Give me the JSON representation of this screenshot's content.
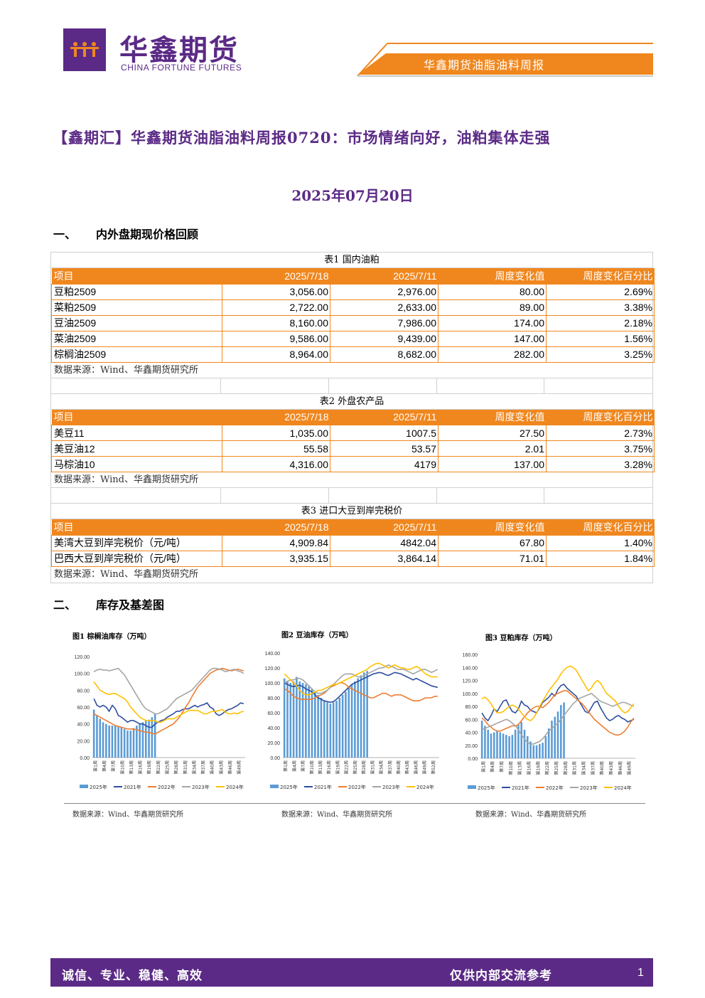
{
  "header": {
    "logo_cn": "华鑫期货",
    "logo_en": "CHINA FORTUNE FUTURES",
    "bar_text": "华鑫期货油脂油料周报"
  },
  "title": "【鑫期汇】华鑫期货油脂油料周报0720：市场情绪向好，油粕集体走强",
  "date": "2025年07月20日",
  "sections": {
    "s1": {
      "num": "一、",
      "label": "内外盘期现价格回顾"
    },
    "s2": {
      "num": "二、",
      "label": "库存及基差图"
    }
  },
  "columns": [
    "项目",
    "2025/7/18",
    "2025/7/11",
    "周度变化值",
    "周度变化百分比"
  ],
  "table1": {
    "caption": "表1 国内油粕",
    "rows": [
      [
        "豆粕2509",
        "3,056.00",
        "2,976.00",
        "80.00",
        "2.69%"
      ],
      [
        "菜粕2509",
        "2,722.00",
        "2,633.00",
        "89.00",
        "3.38%"
      ],
      [
        "豆油2509",
        "8,160.00",
        "7,986.00",
        "174.00",
        "2.18%"
      ],
      [
        "菜油2509",
        "9,586.00",
        "9,439.00",
        "147.00",
        "1.56%"
      ],
      [
        "棕榈油2509",
        "8,964.00",
        "8,682.00",
        "282.00",
        "3.25%"
      ]
    ],
    "source": "数据来源：Wind、华鑫期货研究所"
  },
  "table2": {
    "caption": "表2 外盘农产品",
    "rows": [
      [
        "美豆11",
        "1,035.00",
        "1007.5",
        "27.50",
        "2.73%"
      ],
      [
        "美豆油12",
        "55.58",
        "53.57",
        "2.01",
        "3.75%"
      ],
      [
        "马棕油10",
        "4,316.00",
        "4179",
        "137.00",
        "3.28%"
      ]
    ],
    "source": "数据来源：Wind、华鑫期货研究所"
  },
  "table3": {
    "caption": "表3 进口大豆到岸完税价",
    "rows": [
      [
        "美湾大豆到岸完税价（元/吨）",
        "4,909.84",
        "4842.04",
        "67.80",
        "1.40%"
      ],
      [
        "巴西大豆到岸完税价（元/吨）",
        "3,935.15",
        "3,864.14",
        "71.01",
        "1.84%"
      ]
    ],
    "source": "数据来源：Wind、华鑫期货研究所"
  },
  "chart_data": [
    {
      "type": "line",
      "title": "图1 棕榈油库存（万吨）",
      "ylim": [
        0,
        120
      ],
      "yticks": [
        "120.00",
        "100.00",
        "80.00",
        "60.00",
        "40.00",
        "20.00",
        "0.00"
      ],
      "xticks": [
        "第1周",
        "第4周",
        "第7周",
        "第10周",
        "第13周",
        "第16周",
        "第19周",
        "第22周",
        "第25周",
        "第28周",
        "第31周",
        "第34周",
        "第37周",
        "第40周",
        "第43周",
        "第46周",
        "第49周"
      ],
      "bar_series": {
        "name": "2025年",
        "color": "#5b9bd5",
        "values": [
          57,
          50,
          46,
          42,
          40,
          38,
          38,
          38,
          37,
          36,
          34,
          32,
          32,
          35,
          38,
          40,
          42,
          44,
          45,
          48,
          52
        ]
      },
      "series": [
        {
          "name": "2021年",
          "color": "#2e4f9e",
          "values": [
            70,
            62,
            60,
            62,
            60,
            55,
            62,
            58,
            50,
            48,
            45,
            42,
            44,
            44,
            42,
            40,
            40,
            38,
            36,
            36,
            40,
            42,
            44,
            45,
            48,
            50,
            52,
            55,
            55,
            57,
            58,
            58,
            60,
            62,
            60,
            62,
            63,
            65,
            60,
            58,
            52,
            50,
            52,
            55,
            57,
            58,
            60,
            62,
            65,
            64
          ]
        },
        {
          "name": "2022年",
          "color": "#ed7d31",
          "values": [
            52,
            50,
            48,
            46,
            44,
            42,
            40,
            38,
            37,
            36,
            35,
            34,
            34,
            34,
            33,
            32,
            31,
            30,
            30,
            29,
            28,
            30,
            32,
            34,
            36,
            38,
            40,
            44,
            48,
            54,
            60,
            65,
            72,
            78,
            84,
            88,
            92,
            96,
            100,
            102,
            104,
            105,
            106,
            105,
            104,
            103,
            104,
            105,
            104,
            103
          ]
        },
        {
          "name": "2023年",
          "color": "#a5a5a5",
          "values": [
            102,
            104,
            105,
            104,
            104,
            103,
            104,
            105,
            106,
            102,
            98,
            92,
            86,
            80,
            74,
            68,
            62,
            58,
            56,
            54,
            52,
            52,
            54,
            56,
            58,
            62,
            66,
            70,
            72,
            74,
            76,
            78,
            80,
            84,
            88,
            92,
            96,
            100,
            104,
            106,
            106,
            105,
            104,
            102,
            103,
            104,
            105,
            103,
            102,
            100
          ]
        },
        {
          "name": "2024年",
          "color": "#ffc000",
          "values": [
            90,
            85,
            80,
            78,
            76,
            75,
            76,
            76,
            74,
            72,
            70,
            66,
            60,
            56,
            52,
            48,
            46,
            44,
            44,
            44,
            44,
            42,
            42,
            44,
            46,
            46,
            46,
            48,
            50,
            52,
            54,
            56,
            56,
            56,
            56,
            54,
            52,
            52,
            54,
            55,
            55,
            56,
            57,
            54,
            52,
            52,
            53,
            52,
            54,
            55
          ]
        }
      ]
    },
    {
      "type": "line",
      "title": "图2 豆油库存（万吨）",
      "ylim": [
        0,
        140
      ],
      "yticks": [
        "140.00",
        "120.00",
        "100.00",
        "80.00",
        "60.00",
        "40.00",
        "20.00",
        "0.00"
      ],
      "xticks": [
        "第1周",
        "第4周",
        "第7周",
        "第10周",
        "第13周",
        "第16周",
        "第19周",
        "第22周",
        "第25周",
        "第28周",
        "第31周",
        "第34周",
        "第37周",
        "第40周",
        "第43周",
        "第46周",
        "第49周",
        "第52周"
      ],
      "bar_series": {
        "name": "2025年",
        "color": "#5b9bd5",
        "values": [
          106,
          103,
          100,
          102,
          108,
          102,
          100,
          98,
          96,
          92,
          88,
          84,
          80,
          76,
          74,
          72,
          74,
          76,
          80,
          84,
          88,
          94,
          98,
          102,
          106,
          110,
          114,
          116
        ]
      },
      "series": [
        {
          "name": "2021年",
          "color": "#2e4f9e",
          "values": [
            100,
            98,
            96,
            95,
            96,
            97,
            95,
            92,
            90,
            88,
            84,
            80,
            78,
            76,
            75,
            74,
            75,
            78,
            82,
            86,
            90,
            94,
            98,
            100,
            102,
            104,
            106,
            108,
            110,
            112,
            113,
            114,
            113,
            111,
            110,
            112,
            114,
            113,
            112,
            110,
            108,
            106,
            104,
            106,
            104,
            102,
            100,
            98,
            96,
            95,
            94
          ]
        },
        {
          "name": "2022年",
          "color": "#ed7d31",
          "values": [
            92,
            90,
            86,
            82,
            80,
            78,
            78,
            78,
            78,
            78,
            80,
            82,
            84,
            86,
            90,
            94,
            96,
            98,
            100,
            100,
            98,
            94,
            92,
            90,
            88,
            86,
            84,
            82,
            80,
            80,
            82,
            84,
            86,
            86,
            84,
            82,
            84,
            84,
            84,
            82,
            80,
            78,
            76,
            76,
            76,
            78,
            80,
            80,
            80,
            82,
            82
          ]
        },
        {
          "name": "2023年",
          "color": "#a5a5a5",
          "values": [
            100,
            102,
            104,
            104,
            106,
            106,
            104,
            100,
            96,
            92,
            88,
            86,
            86,
            88,
            90,
            94,
            98,
            102,
            106,
            110,
            112,
            112,
            112,
            110,
            108,
            108,
            110,
            112,
            114,
            116,
            118,
            120,
            120,
            122,
            124,
            122,
            120,
            118,
            118,
            118,
            116,
            114,
            112,
            114,
            116,
            118,
            118,
            116,
            114,
            116,
            118
          ]
        },
        {
          "name": "2024年",
          "color": "#ffc000",
          "values": [
            112,
            108,
            104,
            100,
            96,
            90,
            86,
            84,
            84,
            86,
            88,
            90,
            90,
            92,
            94,
            96,
            98,
            98,
            100,
            102,
            104,
            106,
            108,
            110,
            112,
            114,
            116,
            118,
            122,
            124,
            126,
            126,
            124,
            122,
            120,
            122,
            124,
            122,
            120,
            120,
            118,
            118,
            120,
            122,
            120,
            116,
            112,
            110,
            108,
            108,
            108
          ]
        }
      ]
    },
    {
      "type": "line",
      "title": "图3 豆粕库存（万吨）",
      "ylim": [
        0,
        160
      ],
      "yticks": [
        "160.00",
        "140.00",
        "120.00",
        "100.00",
        "80.00",
        "60.00",
        "40.00",
        "20.00",
        "0.00"
      ],
      "xticks": [
        "第1周",
        "第4周",
        "第7周",
        "第10周",
        "第13周",
        "第16周",
        "第19周",
        "第22周",
        "第25周",
        "第28周",
        "第31周",
        "第34周",
        "第37周",
        "第40周",
        "第43周",
        "第46周",
        "第49周"
      ],
      "bar_series": {
        "name": "2025年",
        "color": "#5b9bd5",
        "values": [
          58,
          50,
          44,
          38,
          40,
          42,
          40,
          38,
          36,
          34,
          36,
          44,
          52,
          56,
          44,
          34,
          26,
          20,
          20,
          22,
          24,
          34,
          46,
          58,
          64,
          72,
          82,
          86
        ]
      },
      "series": [
        {
          "name": "2021年",
          "color": "#2e4f9e",
          "values": [
            70,
            62,
            58,
            66,
            76,
            72,
            80,
            88,
            90,
            80,
            72,
            70,
            76,
            88,
            82,
            80,
            74,
            72,
            70,
            78,
            86,
            90,
            94,
            100,
            96,
            106,
            112,
            114,
            108,
            104,
            100,
            96,
            88,
            80,
            72,
            70,
            78,
            86,
            88,
            78,
            70,
            62,
            58,
            60,
            64,
            66,
            62,
            60,
            56,
            58,
            60
          ]
        },
        {
          "name": "2022年",
          "color": "#ed7d31",
          "values": [
            62,
            58,
            52,
            48,
            44,
            42,
            42,
            44,
            46,
            48,
            50,
            50,
            52,
            58,
            64,
            70,
            74,
            78,
            80,
            80,
            78,
            82,
            86,
            92,
            98,
            100,
            102,
            104,
            104,
            100,
            96,
            92,
            88,
            84,
            78,
            72,
            66,
            60,
            56,
            52,
            48,
            44,
            40,
            38,
            36,
            36,
            38,
            42,
            48,
            56,
            62
          ]
        },
        {
          "name": "2023年",
          "color": "#a5a5a5",
          "values": [
            44,
            46,
            48,
            50,
            52,
            54,
            56,
            58,
            60,
            58,
            54,
            50,
            44,
            36,
            30,
            24,
            22,
            22,
            24,
            26,
            30,
            36,
            42,
            46,
            50,
            54,
            60,
            66,
            72,
            78,
            84,
            88,
            92,
            94,
            96,
            98,
            100,
            96,
            92,
            88,
            86,
            84,
            82,
            80,
            82,
            84,
            86,
            86,
            84,
            82,
            80
          ]
        },
        {
          "name": "2024年",
          "color": "#ffc000",
          "values": [
            92,
            94,
            90,
            84,
            76,
            70,
            70,
            72,
            76,
            80,
            82,
            80,
            76,
            70,
            64,
            60,
            58,
            62,
            70,
            80,
            88,
            96,
            104,
            110,
            116,
            122,
            130,
            136,
            140,
            142,
            140,
            136,
            128,
            120,
            112,
            104,
            108,
            116,
            120,
            116,
            108,
            100,
            96,
            92,
            88,
            80,
            74,
            70,
            72,
            78,
            84
          ]
        }
      ]
    }
  ],
  "chart_source": "数据来源：Wind、华鑫期货研究所",
  "footer": {
    "left": "诚信、专业、稳健、高效",
    "right": "仅供内部交流参考",
    "page": "1"
  }
}
